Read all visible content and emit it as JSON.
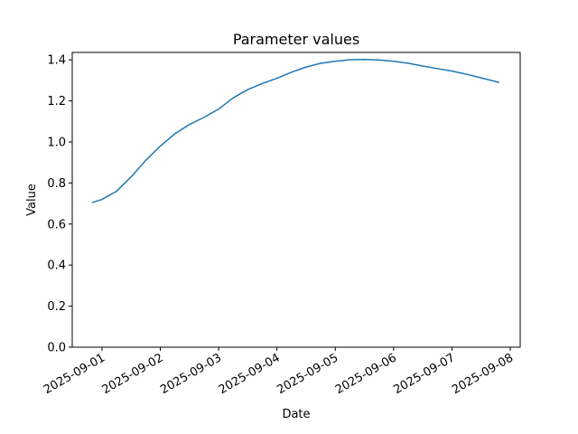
{
  "chart_data": {
    "type": "line",
    "title": "Parameter values",
    "x_label": "Date",
    "y_label": "Value",
    "x": [
      0.83,
      1.0,
      1.25,
      1.5,
      1.75,
      2.0,
      2.25,
      2.5,
      2.75,
      3.0,
      3.25,
      3.5,
      3.75,
      4.0,
      4.25,
      4.5,
      4.75,
      5.0,
      5.25,
      5.5,
      5.75,
      6.0,
      6.25,
      6.5,
      6.75,
      7.0,
      7.25,
      7.5,
      7.81
    ],
    "series": [
      {
        "color": "#1f77b4",
        "values": [
          0.705,
          0.72,
          0.76,
          0.83,
          0.91,
          0.98,
          1.04,
          1.085,
          1.12,
          1.16,
          1.215,
          1.255,
          1.285,
          1.31,
          1.34,
          1.365,
          1.383,
          1.393,
          1.4,
          1.402,
          1.399,
          1.393,
          1.383,
          1.37,
          1.357,
          1.345,
          1.33,
          1.312,
          1.29
        ]
      }
    ],
    "xlim": [
      0.49,
      8.17
    ],
    "xticks": [
      {
        "value": 1,
        "label": "2025-09-01"
      },
      {
        "value": 2,
        "label": "2025-09-02"
      },
      {
        "value": 3,
        "label": "2025-09-03"
      },
      {
        "value": 4,
        "label": "2025-09-04"
      },
      {
        "value": 5,
        "label": "2025-09-05"
      },
      {
        "value": 6,
        "label": "2025-09-06"
      },
      {
        "value": 7,
        "label": "2025-09-07"
      },
      {
        "value": 8,
        "label": "2025-09-08"
      }
    ],
    "ylim": [
      0,
      1.436
    ],
    "yticks": [
      {
        "value": 0,
        "label": "0.0"
      },
      {
        "value": 0.2,
        "label": "0.2"
      },
      {
        "value": 0.4,
        "label": "0.4"
      },
      {
        "value": 0.6,
        "label": "0.6"
      },
      {
        "value": 0.8,
        "label": "0.8"
      },
      {
        "value": 1.0,
        "label": "1.0"
      },
      {
        "value": 1.2,
        "label": "1.2"
      },
      {
        "value": 1.4,
        "label": "1.4"
      }
    ]
  }
}
